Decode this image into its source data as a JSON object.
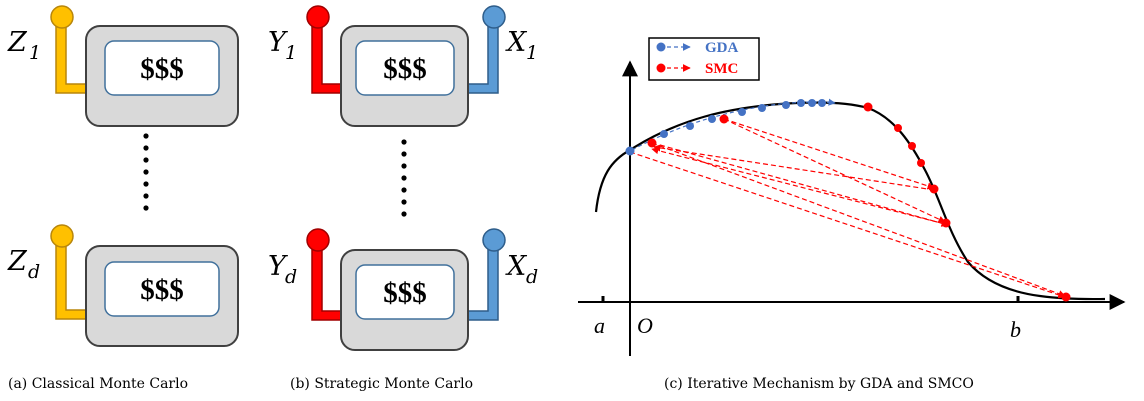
{
  "panel_a": {
    "caption": "(a) Classical Monte Carlo",
    "machines": [
      {
        "left_var": "Z",
        "left_sub": "1",
        "screen": "$$$"
      },
      {
        "left_var": "Z",
        "left_sub": "d",
        "screen": "$$$"
      }
    ]
  },
  "panel_b": {
    "caption": "(b) Strategic Monte Carlo",
    "machines": [
      {
        "left_var": "Y",
        "left_sub": "1",
        "right_var": "X",
        "right_sub": "1",
        "screen": "$$$"
      },
      {
        "left_var": "Y",
        "left_sub": "d",
        "right_var": "X",
        "right_sub": "d",
        "screen": "$$$"
      }
    ]
  },
  "panel_c": {
    "caption": "(c) Iterative Mechanism by GDA and SMCO",
    "legend": [
      {
        "label": "GDA",
        "color": "#4472c4"
      },
      {
        "label": "SMC",
        "color": "#ff0000"
      }
    ],
    "axis_labels": {
      "a": "a",
      "origin": "O",
      "b": "b"
    }
  },
  "colors": {
    "lever_yellow": "#ffc000",
    "lever_red": "#ff0000",
    "lever_blue": "#5b9bd5",
    "machine_body": "#d9d9d9",
    "screen_border": "#41719c",
    "gda": "#4472c4",
    "smc": "#ff0000"
  }
}
